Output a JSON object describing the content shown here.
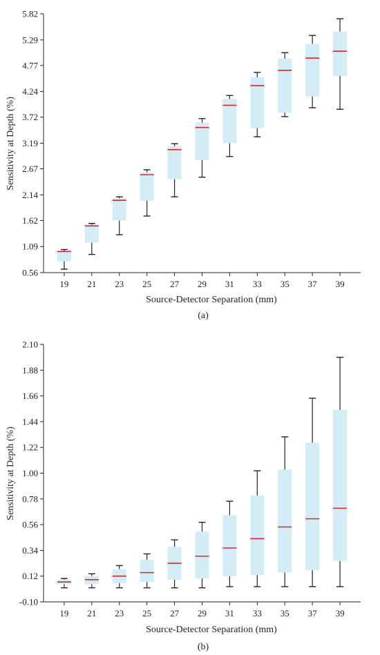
{
  "colors": {
    "box_fill": "#d3ecf6",
    "median": "#d62728",
    "whisker": "#222222",
    "axis": "#222222"
  },
  "chart_data": [
    {
      "type": "boxplot",
      "caption": "(a)",
      "xlabel": "Source-Detector Separation (mm)",
      "ylabel": "Sensitivity at Depth (%)",
      "categories": [
        "19",
        "21",
        "23",
        "25",
        "27",
        "29",
        "31",
        "33",
        "35",
        "37",
        "39"
      ],
      "yticks": [
        "0.56",
        "1.09",
        "1.62",
        "2.14",
        "2.67",
        "3.19",
        "3.72",
        "4.24",
        "4.77",
        "5.29",
        "5.82"
      ],
      "ylim": [
        0.56,
        5.82
      ],
      "boxes": [
        {
          "min": 0.63,
          "q1": 0.79,
          "median": 0.99,
          "q3": 1.0,
          "max": 1.03
        },
        {
          "min": 0.93,
          "q1": 1.17,
          "median": 1.51,
          "q3": 1.53,
          "max": 1.56
        },
        {
          "min": 1.33,
          "q1": 1.62,
          "median": 2.03,
          "q3": 2.07,
          "max": 2.1
        },
        {
          "min": 1.71,
          "q1": 2.02,
          "median": 2.55,
          "q3": 2.6,
          "max": 2.65
        },
        {
          "min": 2.1,
          "q1": 2.46,
          "median": 3.06,
          "q3": 3.13,
          "max": 3.18
        },
        {
          "min": 2.5,
          "q1": 2.85,
          "median": 3.51,
          "q3": 3.61,
          "max": 3.69
        },
        {
          "min": 2.92,
          "q1": 3.19,
          "median": 3.96,
          "q3": 4.09,
          "max": 4.16
        },
        {
          "min": 3.32,
          "q1": 3.5,
          "median": 4.36,
          "q3": 4.53,
          "max": 4.63
        },
        {
          "min": 3.73,
          "q1": 3.81,
          "median": 4.67,
          "q3": 4.91,
          "max": 5.03
        },
        {
          "min": 3.91,
          "q1": 4.14,
          "median": 4.92,
          "q3": 5.21,
          "max": 5.38
        },
        {
          "min": 3.88,
          "q1": 4.56,
          "median": 5.06,
          "q3": 5.46,
          "max": 5.72
        }
      ]
    },
    {
      "type": "boxplot",
      "caption": "(b)",
      "xlabel": "Source-Detector Separation (mm)",
      "ylabel": "Sensitivity at Depth (%)",
      "categories": [
        "19",
        "21",
        "23",
        "25",
        "27",
        "29",
        "31",
        "33",
        "35",
        "37",
        "39"
      ],
      "yticks": [
        "-0.10",
        "0.12",
        "0.34",
        "0.56",
        "0.78",
        "1.00",
        "1.22",
        "1.44",
        "1.66",
        "1.88",
        "2.10"
      ],
      "ylim": [
        -0.1,
        2.1
      ],
      "boxes": [
        {
          "min": 0.02,
          "q1": 0.05,
          "median": 0.07,
          "q3": 0.09,
          "max": 0.1
        },
        {
          "min": 0.02,
          "q1": 0.05,
          "median": 0.09,
          "q3": 0.12,
          "max": 0.14
        },
        {
          "min": 0.02,
          "q1": 0.06,
          "median": 0.12,
          "q3": 0.18,
          "max": 0.21
        },
        {
          "min": 0.02,
          "q1": 0.07,
          "median": 0.15,
          "q3": 0.26,
          "max": 0.31
        },
        {
          "min": 0.02,
          "q1": 0.09,
          "median": 0.23,
          "q3": 0.37,
          "max": 0.43
        },
        {
          "min": 0.02,
          "q1": 0.1,
          "median": 0.29,
          "q3": 0.5,
          "max": 0.58
        },
        {
          "min": 0.03,
          "q1": 0.12,
          "median": 0.36,
          "q3": 0.64,
          "max": 0.76
        },
        {
          "min": 0.03,
          "q1": 0.13,
          "median": 0.44,
          "q3": 0.81,
          "max": 1.02
        },
        {
          "min": 0.03,
          "q1": 0.15,
          "median": 0.54,
          "q3": 1.03,
          "max": 1.31
        },
        {
          "min": 0.03,
          "q1": 0.17,
          "median": 0.61,
          "q3": 1.26,
          "max": 1.64
        },
        {
          "min": 0.03,
          "q1": 0.25,
          "median": 0.7,
          "q3": 1.54,
          "max": 1.99
        }
      ]
    }
  ]
}
